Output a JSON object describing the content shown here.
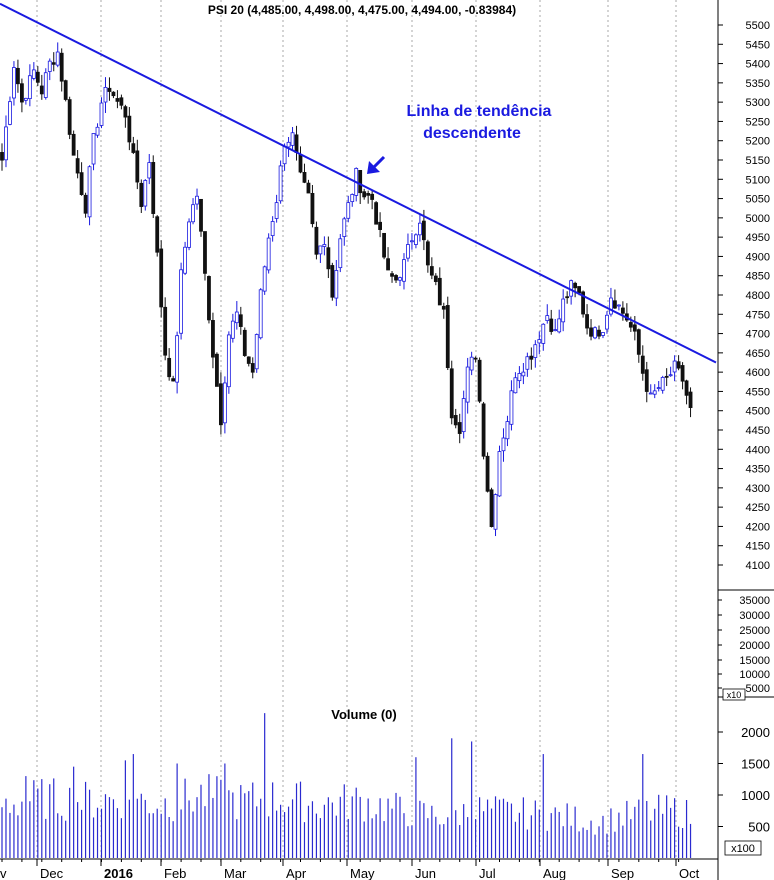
{
  "chart_data": {
    "type": "candlestick",
    "title": "PSI 20 (4,485.00, 4,498.00, 4,475.00, 4,494.00, -0.83984)",
    "annotation": {
      "line1": "Linha de tendência",
      "line2": "descendente"
    },
    "price_axis": {
      "ylim": [
        4050,
        5560
      ],
      "ticks": [
        5500,
        5450,
        5400,
        5350,
        5300,
        5250,
        5200,
        5150,
        5100,
        5050,
        5000,
        4950,
        4900,
        4850,
        4800,
        4750,
        4700,
        4650,
        4600,
        4550,
        4500,
        4450,
        4400,
        4350,
        4300,
        4250,
        4200,
        4150,
        4100
      ]
    },
    "secondary_axis": {
      "ticks": [
        "35000",
        "30000",
        "25000",
        "20000",
        "15000",
        "10000",
        "5000"
      ],
      "unit": "x10"
    },
    "volume": {
      "title": "Volume (0)",
      "ticks": [
        "2000",
        "1500",
        "1000",
        "500"
      ],
      "unit": "x100",
      "ylim": [
        0,
        2400
      ]
    },
    "months": [
      "v",
      "Dec",
      "2016",
      "Feb",
      "Mar",
      "Apr",
      "May",
      "Jun",
      "Jul",
      "Aug",
      "Sep",
      "Oct"
    ],
    "trendline": {
      "start_price": 5555,
      "end_price": 4625,
      "color": "#1a1ae0"
    },
    "colors": {
      "up": "#1a1ae0",
      "down": "#111111",
      "volume": "#2a2ad0",
      "grid": "#aaaaaa",
      "annotation": "#1a1ae0"
    },
    "close_anchors": [
      [
        0,
        5150
      ],
      [
        3,
        5400
      ],
      [
        5,
        5300
      ],
      [
        8,
        5380
      ],
      [
        10,
        5330
      ],
      [
        12,
        5400
      ],
      [
        14,
        5430
      ],
      [
        16,
        5300
      ],
      [
        18,
        5160
      ],
      [
        21,
        5030
      ],
      [
        23,
        5200
      ],
      [
        25,
        5300
      ],
      [
        27,
        5340
      ],
      [
        29,
        5300
      ],
      [
        31,
        5270
      ],
      [
        33,
        5150
      ],
      [
        35,
        5040
      ],
      [
        37,
        5150
      ],
      [
        39,
        4900
      ],
      [
        41,
        4650
      ],
      [
        43,
        4560
      ],
      [
        45,
        4850
      ],
      [
        47,
        5000
      ],
      [
        49,
        5060
      ],
      [
        51,
        4850
      ],
      [
        53,
        4650
      ],
      [
        55,
        4480
      ],
      [
        57,
        4700
      ],
      [
        59,
        4750
      ],
      [
        61,
        4650
      ],
      [
        63,
        4600
      ],
      [
        65,
        4800
      ],
      [
        67,
        4950
      ],
      [
        69,
        5050
      ],
      [
        71,
        5200
      ],
      [
        73,
        5210
      ],
      [
        75,
        5100
      ],
      [
        77,
        5050
      ],
      [
        79,
        4900
      ],
      [
        81,
        4950
      ],
      [
        83,
        4800
      ],
      [
        85,
        4950
      ],
      [
        87,
        5030
      ],
      [
        89,
        5110
      ],
      [
        91,
        5060
      ],
      [
        93,
        5050
      ],
      [
        95,
        4950
      ],
      [
        97,
        4850
      ],
      [
        99,
        4840
      ],
      [
        101,
        4880
      ],
      [
        103,
        4950
      ],
      [
        105,
        5000
      ],
      [
        107,
        4870
      ],
      [
        109,
        4820
      ],
      [
        111,
        4750
      ],
      [
        113,
        4500
      ],
      [
        115,
        4460
      ],
      [
        117,
        4600
      ],
      [
        119,
        4650
      ],
      [
        121,
        4400
      ],
      [
        123,
        4200
      ],
      [
        125,
        4400
      ],
      [
        127,
        4480
      ],
      [
        129,
        4600
      ],
      [
        131,
        4620
      ],
      [
        133,
        4650
      ],
      [
        135,
        4700
      ],
      [
        137,
        4750
      ],
      [
        139,
        4700
      ],
      [
        141,
        4780
      ],
      [
        143,
        4820
      ],
      [
        145,
        4800
      ],
      [
        147,
        4720
      ],
      [
        149,
        4700
      ],
      [
        151,
        4720
      ],
      [
        153,
        4800
      ],
      [
        155,
        4770
      ],
      [
        157,
        4740
      ],
      [
        159,
        4690
      ],
      [
        161,
        4600
      ],
      [
        163,
        4530
      ],
      [
        165,
        4560
      ],
      [
        167,
        4580
      ],
      [
        169,
        4610
      ],
      [
        171,
        4580
      ],
      [
        173,
        4500
      ]
    ],
    "volume_anchors": [
      [
        0,
        900
      ],
      [
        10,
        1000
      ],
      [
        20,
        950
      ],
      [
        30,
        1000
      ],
      [
        40,
        900
      ],
      [
        50,
        1050
      ],
      [
        60,
        950
      ],
      [
        70,
        1000
      ],
      [
        80,
        900
      ],
      [
        90,
        950
      ],
      [
        100,
        800
      ],
      [
        110,
        700
      ],
      [
        120,
        800
      ],
      [
        130,
        750
      ],
      [
        140,
        700
      ],
      [
        150,
        600
      ],
      [
        160,
        750
      ],
      [
        170,
        800
      ],
      [
        173,
        700
      ]
    ],
    "volume_spikes": [
      [
        6,
        1300
      ],
      [
        18,
        1450
      ],
      [
        31,
        1550
      ],
      [
        33,
        1650
      ],
      [
        44,
        1500
      ],
      [
        56,
        1500
      ],
      [
        66,
        2300
      ],
      [
        104,
        1600
      ],
      [
        113,
        1900
      ],
      [
        118,
        1850
      ],
      [
        136,
        1650
      ],
      [
        161,
        1650
      ]
    ]
  }
}
